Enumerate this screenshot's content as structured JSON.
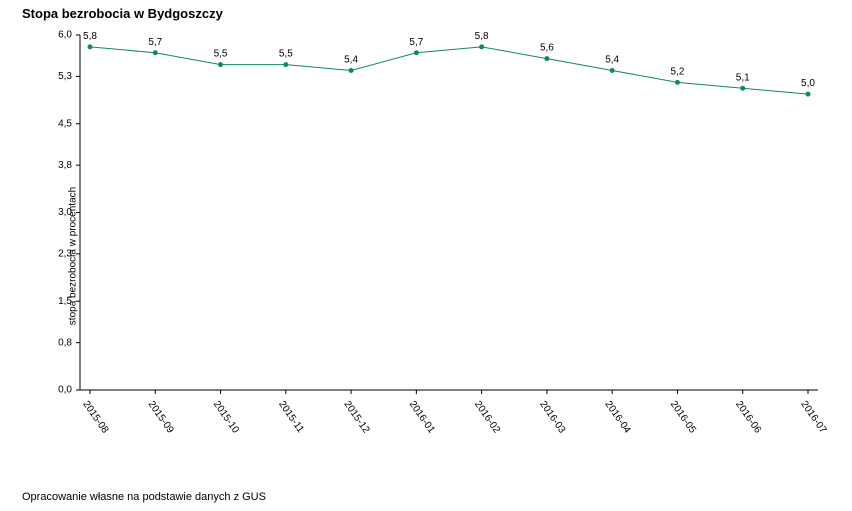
{
  "title": "Stopa bezrobocia w Bydgoszczy",
  "footer": "Opracowanie własne na podstawie danych z GUS",
  "yaxis_label": "stopa bezrobocia w procentach",
  "chart": {
    "type": "line",
    "categories": [
      "2015-08",
      "2015-09",
      "2015-10",
      "2015-11",
      "2015-12",
      "2016-01",
      "2016-02",
      "2016-03",
      "2016-04",
      "2016-05",
      "2016-06",
      "2016-07"
    ],
    "values": [
      5.8,
      5.7,
      5.5,
      5.5,
      5.4,
      5.7,
      5.8,
      5.6,
      5.4,
      5.2,
      5.1,
      5.0
    ],
    "value_labels": [
      "5,8",
      "5,7",
      "5,5",
      "5,5",
      "5,4",
      "5,7",
      "5,8",
      "5,6",
      "5,4",
      "5,2",
      "5,1",
      "5,0"
    ],
    "ylim": [
      0.0,
      6.0
    ],
    "yticks": [
      0.0,
      0.8,
      1.5,
      2.3,
      3.0,
      3.8,
      4.5,
      5.3,
      6.0
    ],
    "ytick_labels": [
      "0,0",
      "0,8",
      "1,5",
      "2,3",
      "3,0",
      "3,8",
      "4,5",
      "5,3",
      "6,0"
    ],
    "line_color": "#0f8a5f",
    "line_width": 1,
    "marker_color": "#0f8a5f",
    "marker_radius": 2,
    "background_color": "#ffffff",
    "axis_color": "#000000",
    "label_fontsize": 10,
    "title_fontsize": 13
  }
}
